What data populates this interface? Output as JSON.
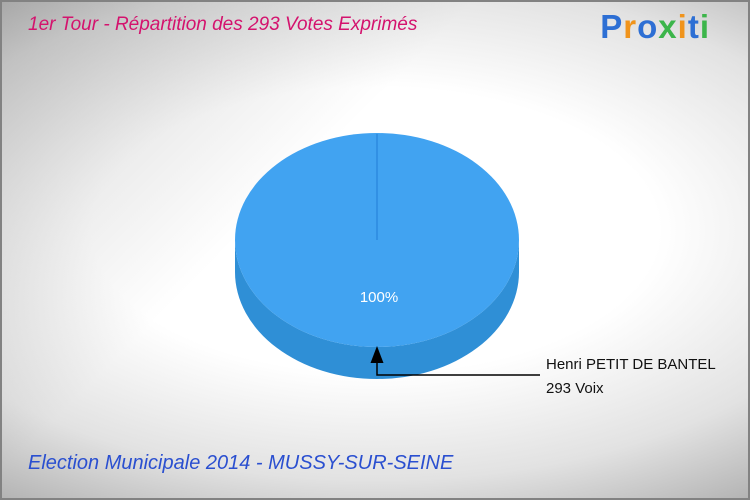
{
  "header": {
    "title": "1er Tour - Répartition des 293 Votes Exprimés"
  },
  "logo": {
    "name": "Proxiti",
    "letters": [
      {
        "char": "P",
        "color": "#2d6fd4"
      },
      {
        "char": "r",
        "color": "#f0941c"
      },
      {
        "char": "o",
        "color": "#2d6fd4"
      },
      {
        "char": "x",
        "color": "#3cb54a"
      },
      {
        "char": "i",
        "color": "#f0941c"
      },
      {
        "char": "t",
        "color": "#2d6fd4"
      },
      {
        "char": "i",
        "color": "#3cb54a"
      }
    ]
  },
  "chart_data": {
    "type": "pie",
    "style": "3d",
    "title": "1er Tour - Répartition des 293 Votes Exprimés",
    "total_votes": 293,
    "slices": [
      {
        "label": "Henri PETIT DE BANTEL",
        "votes": 293,
        "percent": 100,
        "color": "#41a3f1"
      }
    ],
    "center_label": "100%",
    "annotation": {
      "line1": "Henri PETIT DE BANTEL",
      "line2": "293 Voix"
    },
    "legend_position": "callout-right"
  },
  "footer": {
    "text": "Election Municipale 2014 - MUSSY-SUR-SEINE"
  },
  "colors": {
    "title-color": "#d4136e",
    "footer-color": "#2a4fd0",
    "pie-top": "#41a3f1",
    "pie-side": "#2f8fd6",
    "pie-divider": "#2c8adf",
    "annotation-color": "#111111",
    "border-color": "#828282"
  }
}
